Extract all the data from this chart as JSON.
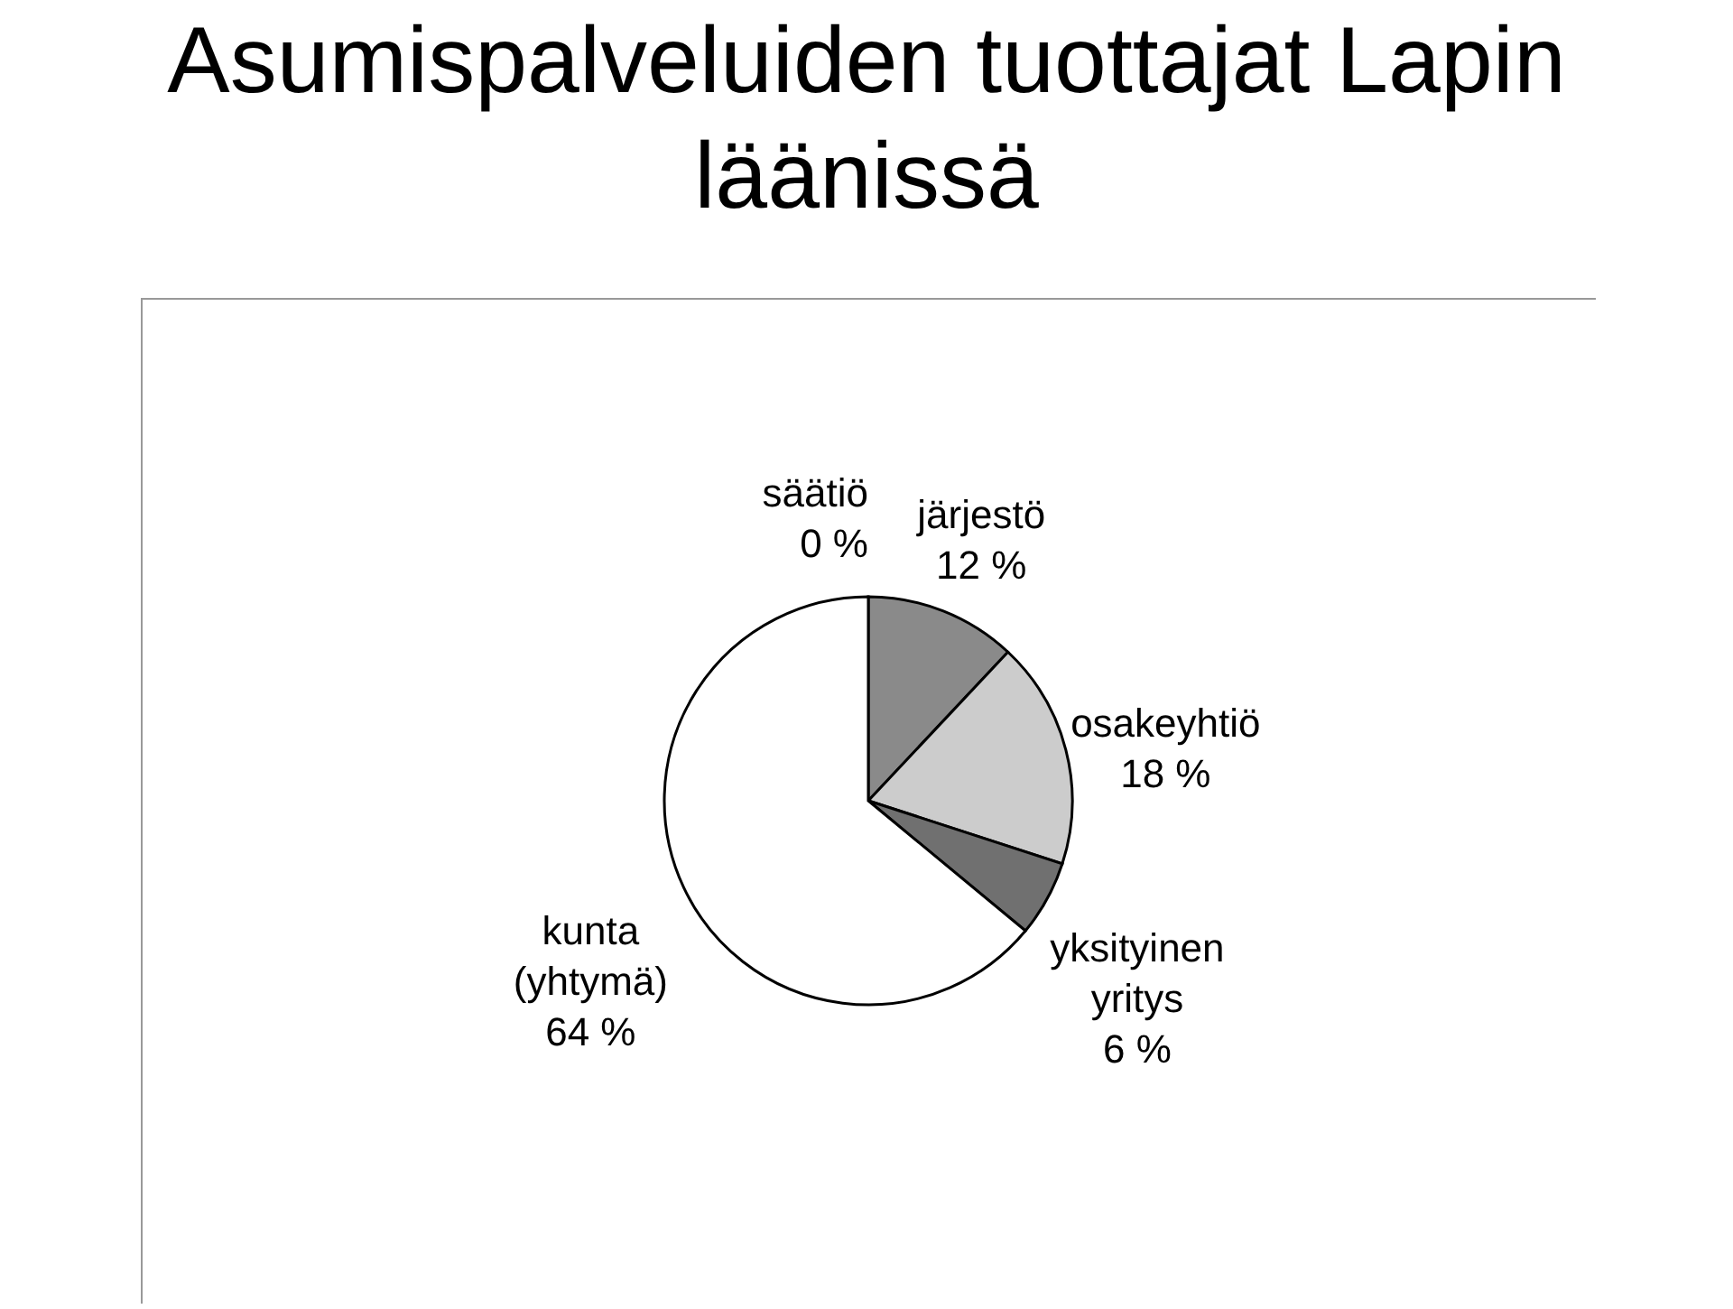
{
  "chart_data": {
    "type": "pie",
    "title": "Asumispalveluiden tuottajat Lapin läänissä",
    "categories": [
      "säätiö",
      "järjestö",
      "osakeyhtiö",
      "yksityinen yritys",
      "kunta (yhtymä)"
    ],
    "values": [
      0,
      12,
      18,
      6,
      64
    ],
    "value_labels": [
      "0 %",
      "12 %",
      "18 %",
      "6 %",
      "64 %"
    ],
    "colors": [
      "#555555",
      "#8a8a8a",
      "#cccccc",
      "#707070",
      "#ffffff"
    ],
    "legend": false
  }
}
